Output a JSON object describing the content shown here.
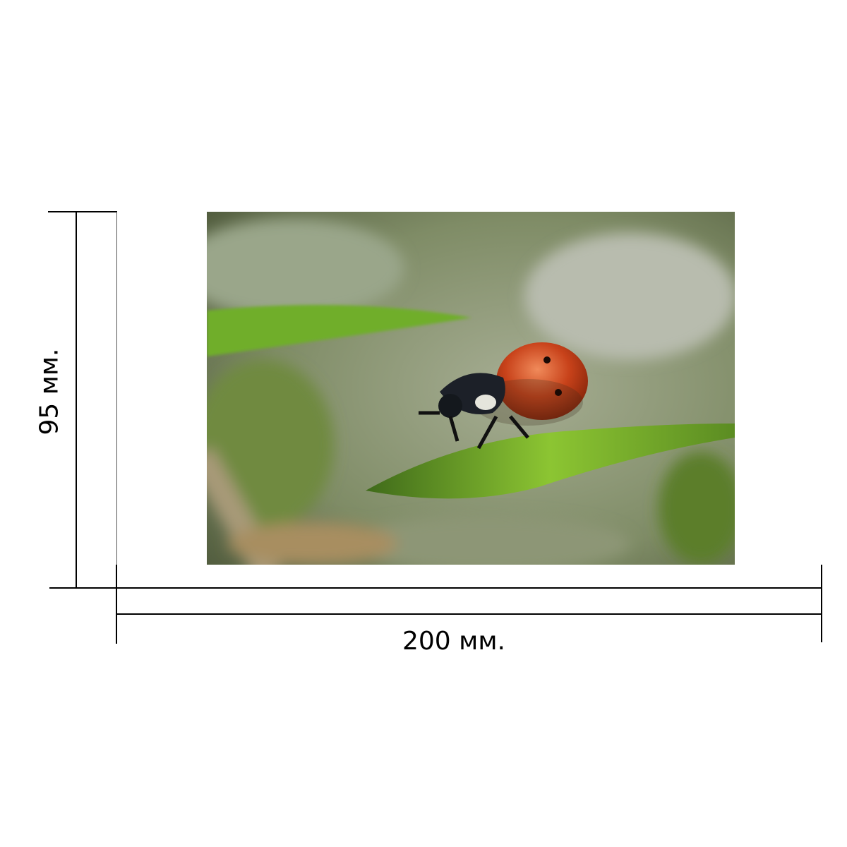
{
  "dimensions": {
    "width_label": "200 мм.",
    "height_label": "95 мм."
  },
  "photo": {
    "subject": "ladybug-on-grass-blade",
    "colors": {
      "background": "#8a9670",
      "leaf": "#6fa82a",
      "shell": "#c8421a"
    }
  }
}
